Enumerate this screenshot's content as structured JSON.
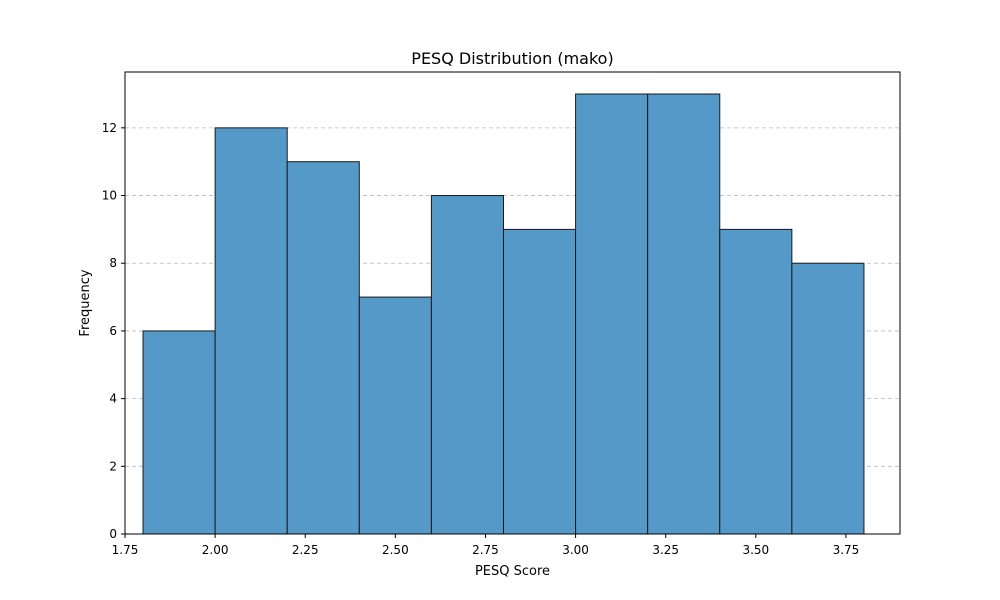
{
  "chart_data": {
    "type": "histogram",
    "title": "PESQ Distribution (mako)",
    "xlabel": "PESQ Score",
    "ylabel": "Frequency",
    "xlim": [
      1.75,
      3.9
    ],
    "ylim": [
      0,
      13.65
    ],
    "bin_edges": [
      1.8,
      2.0,
      2.2,
      2.4,
      2.6,
      2.8,
      3.0,
      3.2,
      3.4,
      3.6,
      3.8
    ],
    "counts": [
      6,
      12,
      11,
      7,
      10,
      9,
      13,
      13,
      9,
      8
    ],
    "x_ticks": [
      1.75,
      2.0,
      2.25,
      2.5,
      2.75,
      3.0,
      3.25,
      3.5,
      3.75
    ],
    "x_tick_labels": [
      "1.75",
      "2.00",
      "2.25",
      "2.50",
      "2.75",
      "3.00",
      "3.25",
      "3.50",
      "3.75"
    ],
    "y_ticks": [
      0,
      2,
      4,
      6,
      8,
      10,
      12
    ],
    "y_tick_labels": [
      "0",
      "2",
      "4",
      "6",
      "8",
      "10",
      "12"
    ],
    "grid": "y-dashed",
    "bar_color": "#5599c8",
    "edge_color": "#1a1a1a"
  }
}
